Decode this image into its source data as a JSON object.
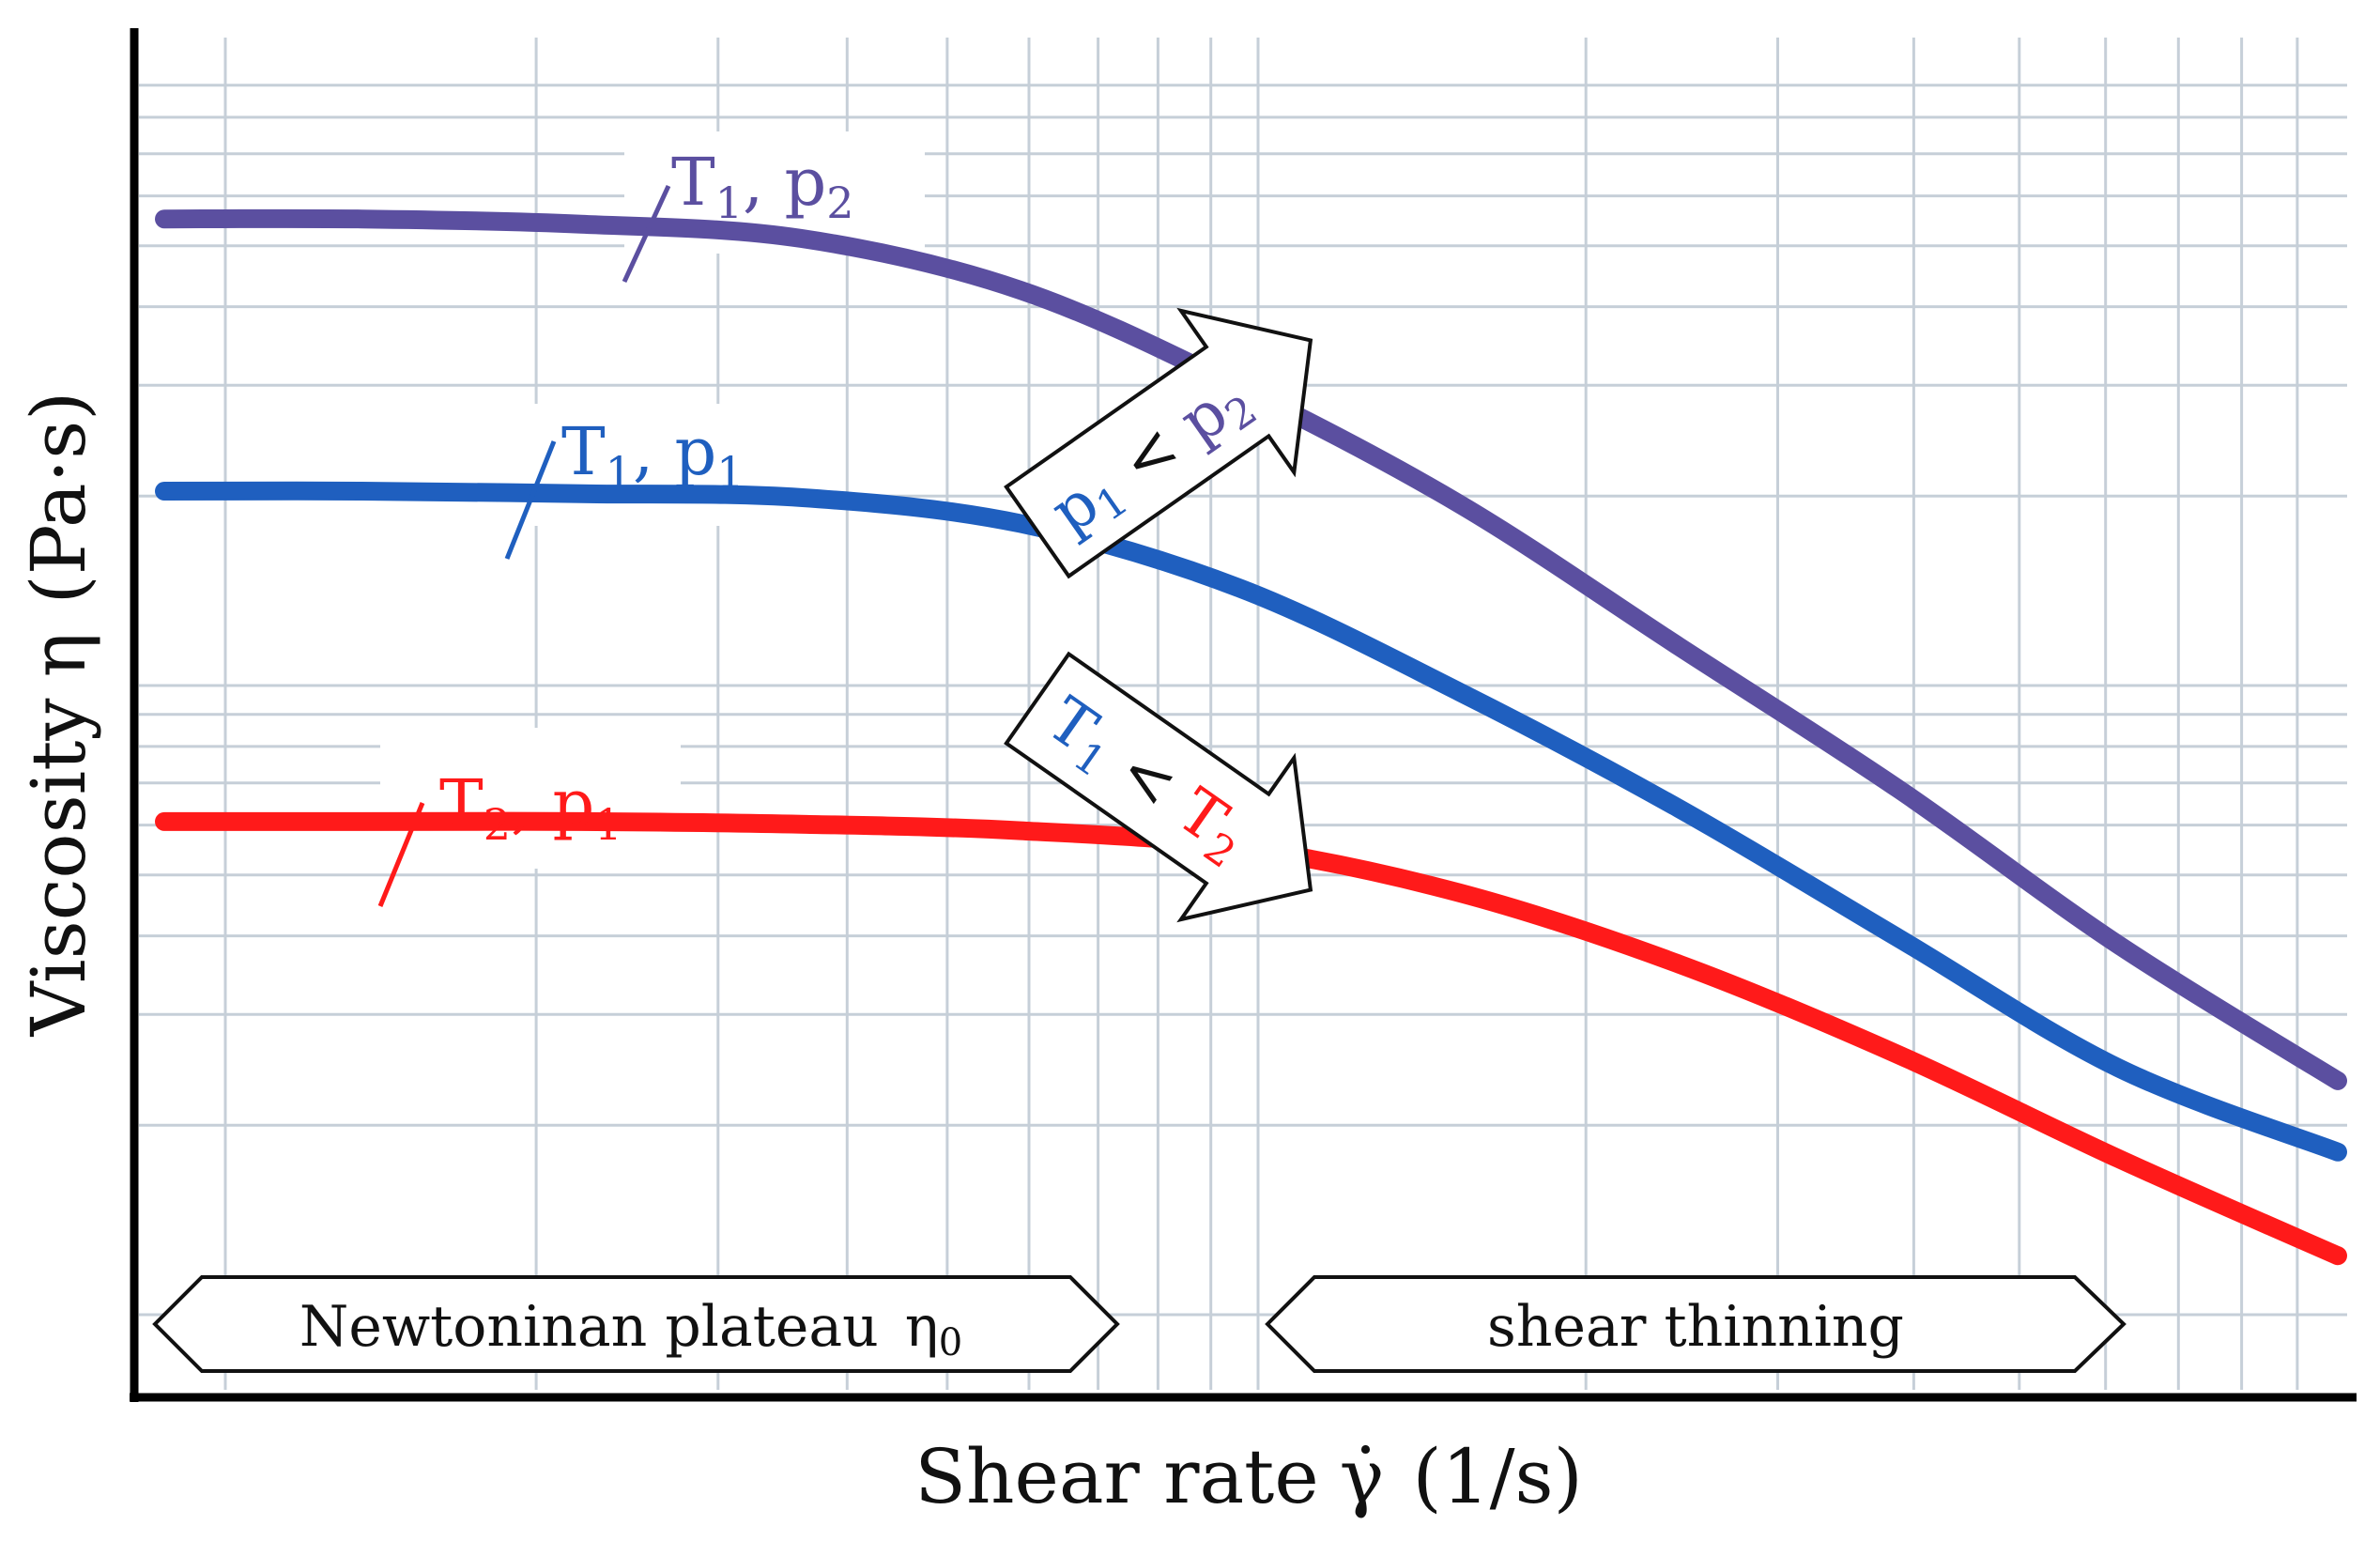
{
  "chart_data": {
    "type": "line",
    "title": "",
    "xlabel": "Shear rate",
    "xlabel_symbol": "γ̇",
    "xlabel_unit": "(1/s)",
    "ylabel": "Viscosity",
    "ylabel_symbol": "η",
    "ylabel_unit": "(Pa·s)",
    "xscale": "log",
    "yscale": "log",
    "xlim": [
      0,
      10
    ],
    "ylim": [
      0,
      10
    ],
    "grid": true,
    "axis_ticks_labeled": false,
    "series": [
      {
        "name": "T1, p2",
        "label_main": "T",
        "label_sub1": "1",
        "label_sep": ", p",
        "label_sub2": "2",
        "color": "#5b4fa0",
        "x": [
          0.1,
          1.0,
          2.0,
          3.0,
          4.0,
          5.0,
          6.0,
          7.0,
          8.0,
          9.0,
          10.0
        ],
        "y": [
          8.6,
          8.6,
          8.56,
          8.45,
          8.05,
          7.3,
          6.4,
          5.3,
          4.2,
          3.0,
          1.95
        ]
      },
      {
        "name": "T1, p1",
        "label_main": "T",
        "label_sub1": "1",
        "label_sep": ", p",
        "label_sub2": "1",
        "color": "#1f5fbf",
        "x": [
          0.1,
          1.0,
          2.0,
          3.0,
          4.0,
          5.0,
          6.0,
          7.0,
          8.0,
          9.0,
          10.0
        ],
        "y": [
          6.5,
          6.5,
          6.48,
          6.45,
          6.25,
          5.75,
          4.95,
          4.05,
          3.05,
          2.05,
          1.4
        ]
      },
      {
        "name": "T2, p1",
        "label_main": "T",
        "label_sub1": "2",
        "label_sep": ", p",
        "label_sub2": "1",
        "color": "#ff1a1a",
        "x": [
          0.1,
          1.0,
          2.0,
          3.0,
          4.0,
          5.0,
          6.0,
          7.0,
          8.0,
          9.0,
          10.0
        ],
        "y": [
          3.95,
          3.95,
          3.95,
          3.93,
          3.88,
          3.75,
          3.4,
          2.85,
          2.15,
          1.35,
          0.6
        ]
      }
    ],
    "annotations": [
      {
        "id": "pressure-arrow",
        "text_parts": [
          "p",
          "1",
          " < ",
          "p",
          "2"
        ],
        "meaning": "p1 < p2",
        "colors": [
          "#1f5fbf",
          "#5b4fa0"
        ]
      },
      {
        "id": "temperature-arrow",
        "text_parts": [
          "T",
          "1",
          " < ",
          "T",
          "2"
        ],
        "meaning": "T1 < T2",
        "colors": [
          "#1f5fbf",
          "#ff1a1a"
        ]
      }
    ],
    "regions": [
      {
        "label": "Newtoninan plateau",
        "symbol": "η",
        "symbol_sub": "0"
      },
      {
        "label": "shear thinning"
      }
    ]
  }
}
